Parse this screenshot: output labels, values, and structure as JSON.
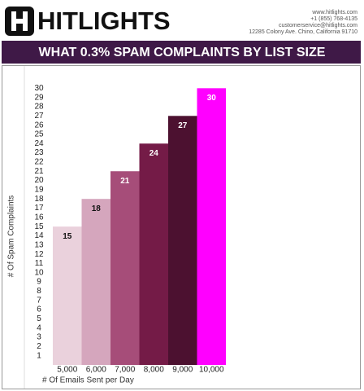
{
  "header": {
    "brand": "HITLIGHTS",
    "contact": [
      "www.hitlights.com",
      "+1 (855) 768-4135",
      "customerservice@hitlights.com",
      "12285 Colony Ave. Chino, California 91710"
    ]
  },
  "chart_data": {
    "type": "bar",
    "title": "WHAT 0.3% SPAM COMPLAINTS BY LIST SIZE",
    "x_label": "# Of Emails Sent per Day",
    "y_label": "# Of Spam Complaints",
    "categories": [
      "5,000",
      "6,000",
      "7,000",
      "8,000",
      "9,000",
      "10,000"
    ],
    "values": [
      15,
      18,
      21,
      24,
      27,
      30
    ],
    "colors": [
      "#ead1dc",
      "#d5a6bd",
      "#a64d79",
      "#741b47",
      "#4c1130",
      "#ff00ff"
    ],
    "ylim": [
      0,
      31
    ],
    "yticks": [
      1,
      2,
      3,
      4,
      5,
      6,
      7,
      8,
      9,
      10,
      11,
      12,
      13,
      14,
      15,
      16,
      17,
      18,
      19,
      20,
      21,
      22,
      23,
      24,
      25,
      26,
      27,
      28,
      29,
      30
    ],
    "grid": false
  }
}
